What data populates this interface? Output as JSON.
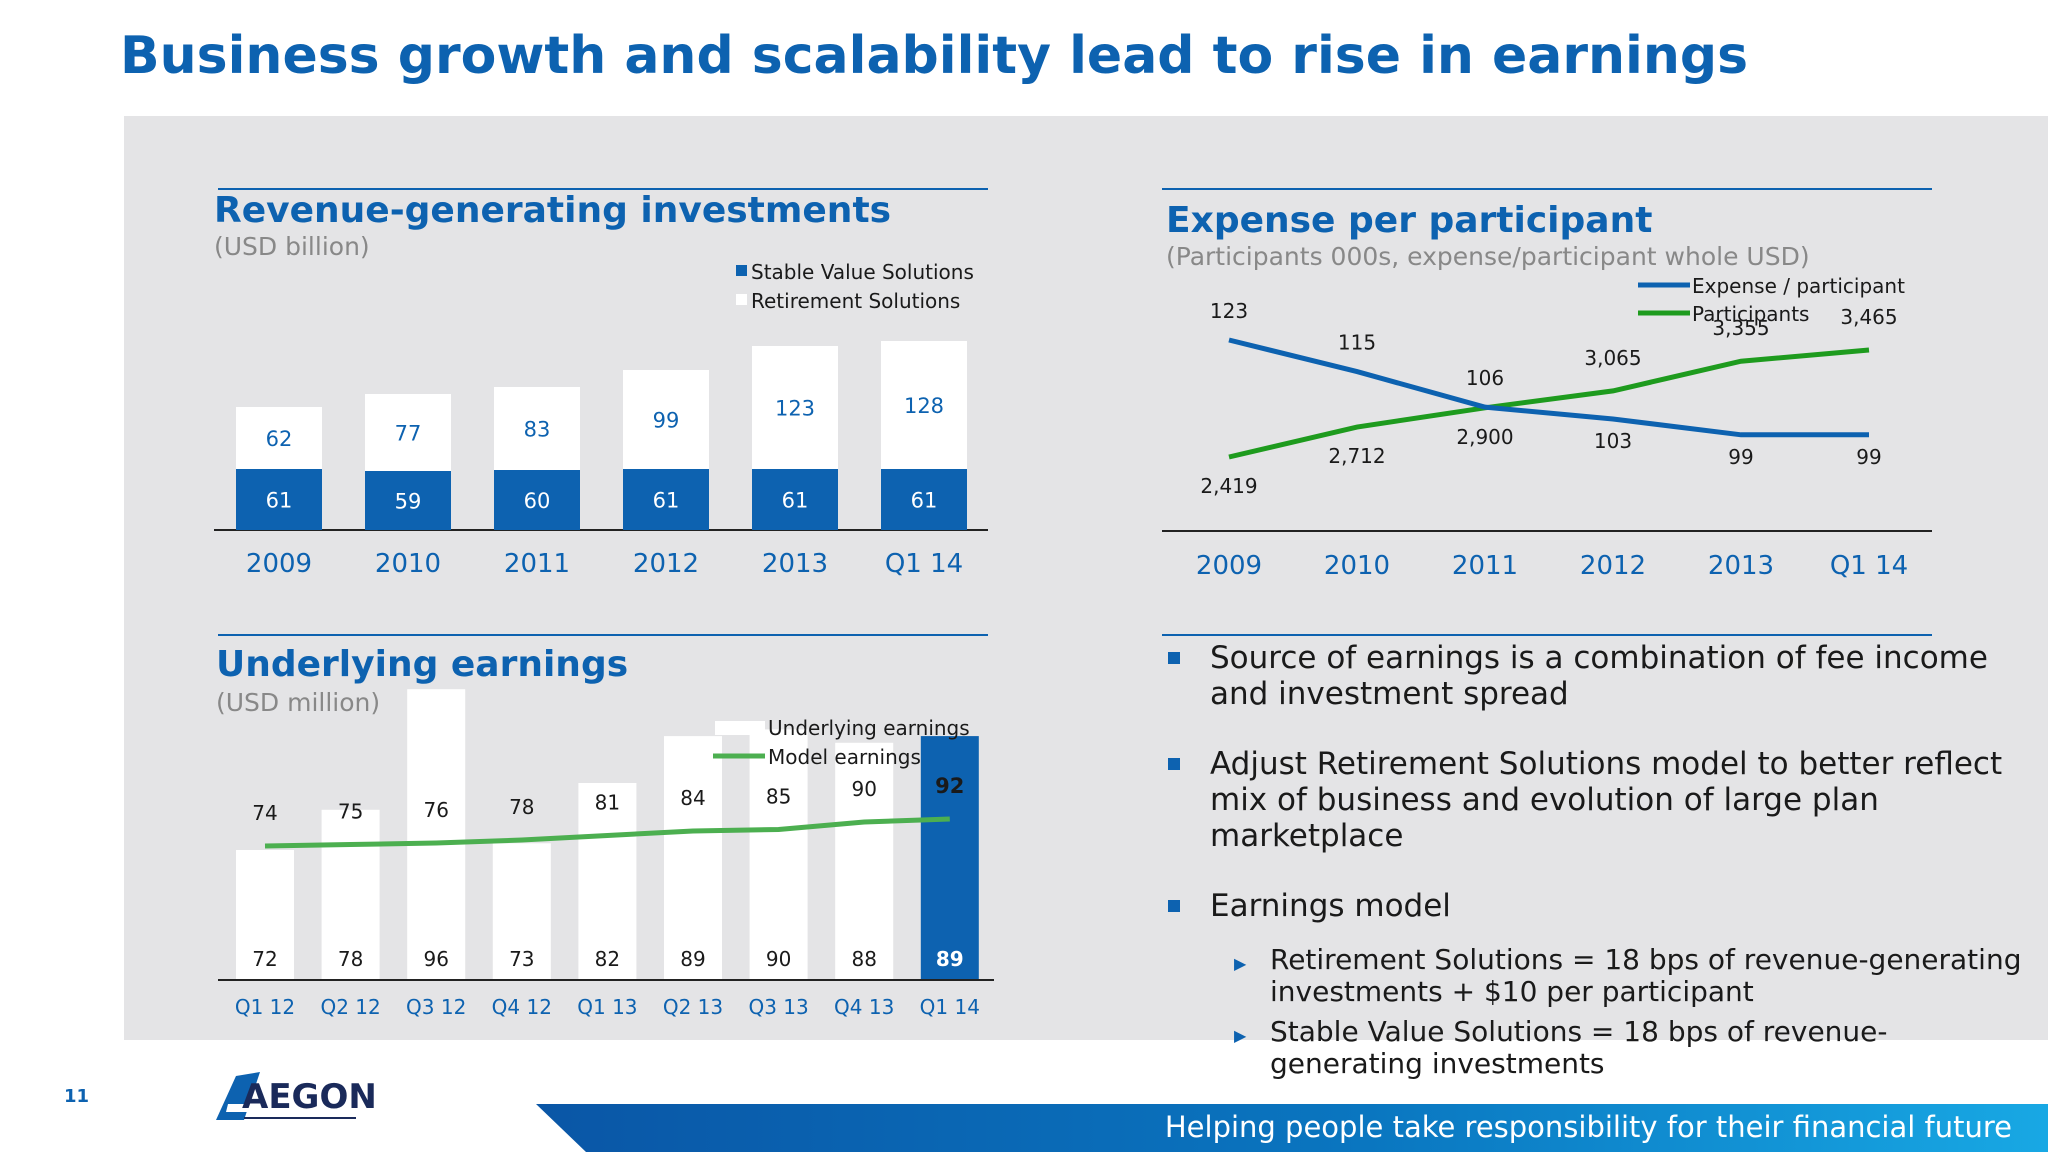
{
  "title": "Business growth and scalability lead to rise in earnings",
  "page_number": "11",
  "logo_text": "AEGON",
  "footer_tagline": "Helping people take responsibility for their financial future",
  "colors": {
    "blue": "#0d62b0",
    "green": "#3aa23a",
    "panel": "#e4e4e6"
  },
  "chart_data": [
    {
      "type": "bar",
      "stacked": true,
      "title": "Revenue-generating investments",
      "subtitle": "(USD billion)",
      "categories": [
        "2009",
        "2010",
        "2011",
        "2012",
        "2013",
        "Q1 14"
      ],
      "series": [
        {
          "name": "Stable Value Solutions",
          "color": "#0d62b0",
          "values": [
            61,
            59,
            60,
            61,
            61,
            61
          ]
        },
        {
          "name": "Retirement Solutions",
          "color": "#ffffff",
          "values": [
            62,
            77,
            83,
            99,
            123,
            128
          ]
        }
      ],
      "ylim": [
        0,
        200
      ],
      "legend": "top-right"
    },
    {
      "type": "line",
      "title": "Expense per participant",
      "subtitle": "(Participants 000s, expense/participant whole USD)",
      "categories": [
        "2009",
        "2010",
        "2011",
        "2012",
        "2013",
        "Q1 14"
      ],
      "series": [
        {
          "name": "Expense / participant",
          "color": "#0d62b0",
          "values": [
            123,
            115,
            106,
            103,
            99,
            99
          ],
          "labels": [
            "123",
            "115",
            "106",
            "103",
            "99",
            "99"
          ]
        },
        {
          "name": "Participants",
          "color": "#1e9b1e",
          "values": [
            2419,
            2712,
            2900,
            3065,
            3355,
            3465
          ],
          "labels": [
            "2,419",
            "2,712",
            "2,900",
            "3,065",
            "3,355",
            "3,465"
          ]
        }
      ],
      "legend": "top-right"
    },
    {
      "type": "bar",
      "title": "Underlying earnings",
      "subtitle": "(USD million)",
      "categories": [
        "Q1 12",
        "Q2 12",
        "Q3 12",
        "Q4 12",
        "Q1 13",
        "Q2 13",
        "Q3 13",
        "Q4 13",
        "Q1 14"
      ],
      "series": [
        {
          "name": "Underlying earnings",
          "color": "#ffffff",
          "values": [
            72,
            78,
            96,
            73,
            82,
            89,
            90,
            88,
            89
          ]
        },
        {
          "name": "Model earnings",
          "type": "line",
          "color": "#4caf50",
          "values": [
            74,
            75,
            76,
            78,
            81,
            84,
            85,
            90,
            92
          ]
        }
      ],
      "highlight_last": true,
      "ylim": [
        0,
        120
      ],
      "legend": "top-right"
    }
  ],
  "bullets": [
    {
      "text": "Source of earnings is a combination of fee income and investment spread",
      "sub": []
    },
    {
      "text": "Adjust Retirement Solutions model to better reflect mix of business and evolution of large plan marketplace",
      "sub": []
    },
    {
      "text": "Earnings model",
      "sub": [
        "Retirement Solutions = 18 bps of revenue-generating investments + $10 per participant",
        "Stable Value Solutions = 18 bps of revenue-generating investments"
      ]
    }
  ]
}
